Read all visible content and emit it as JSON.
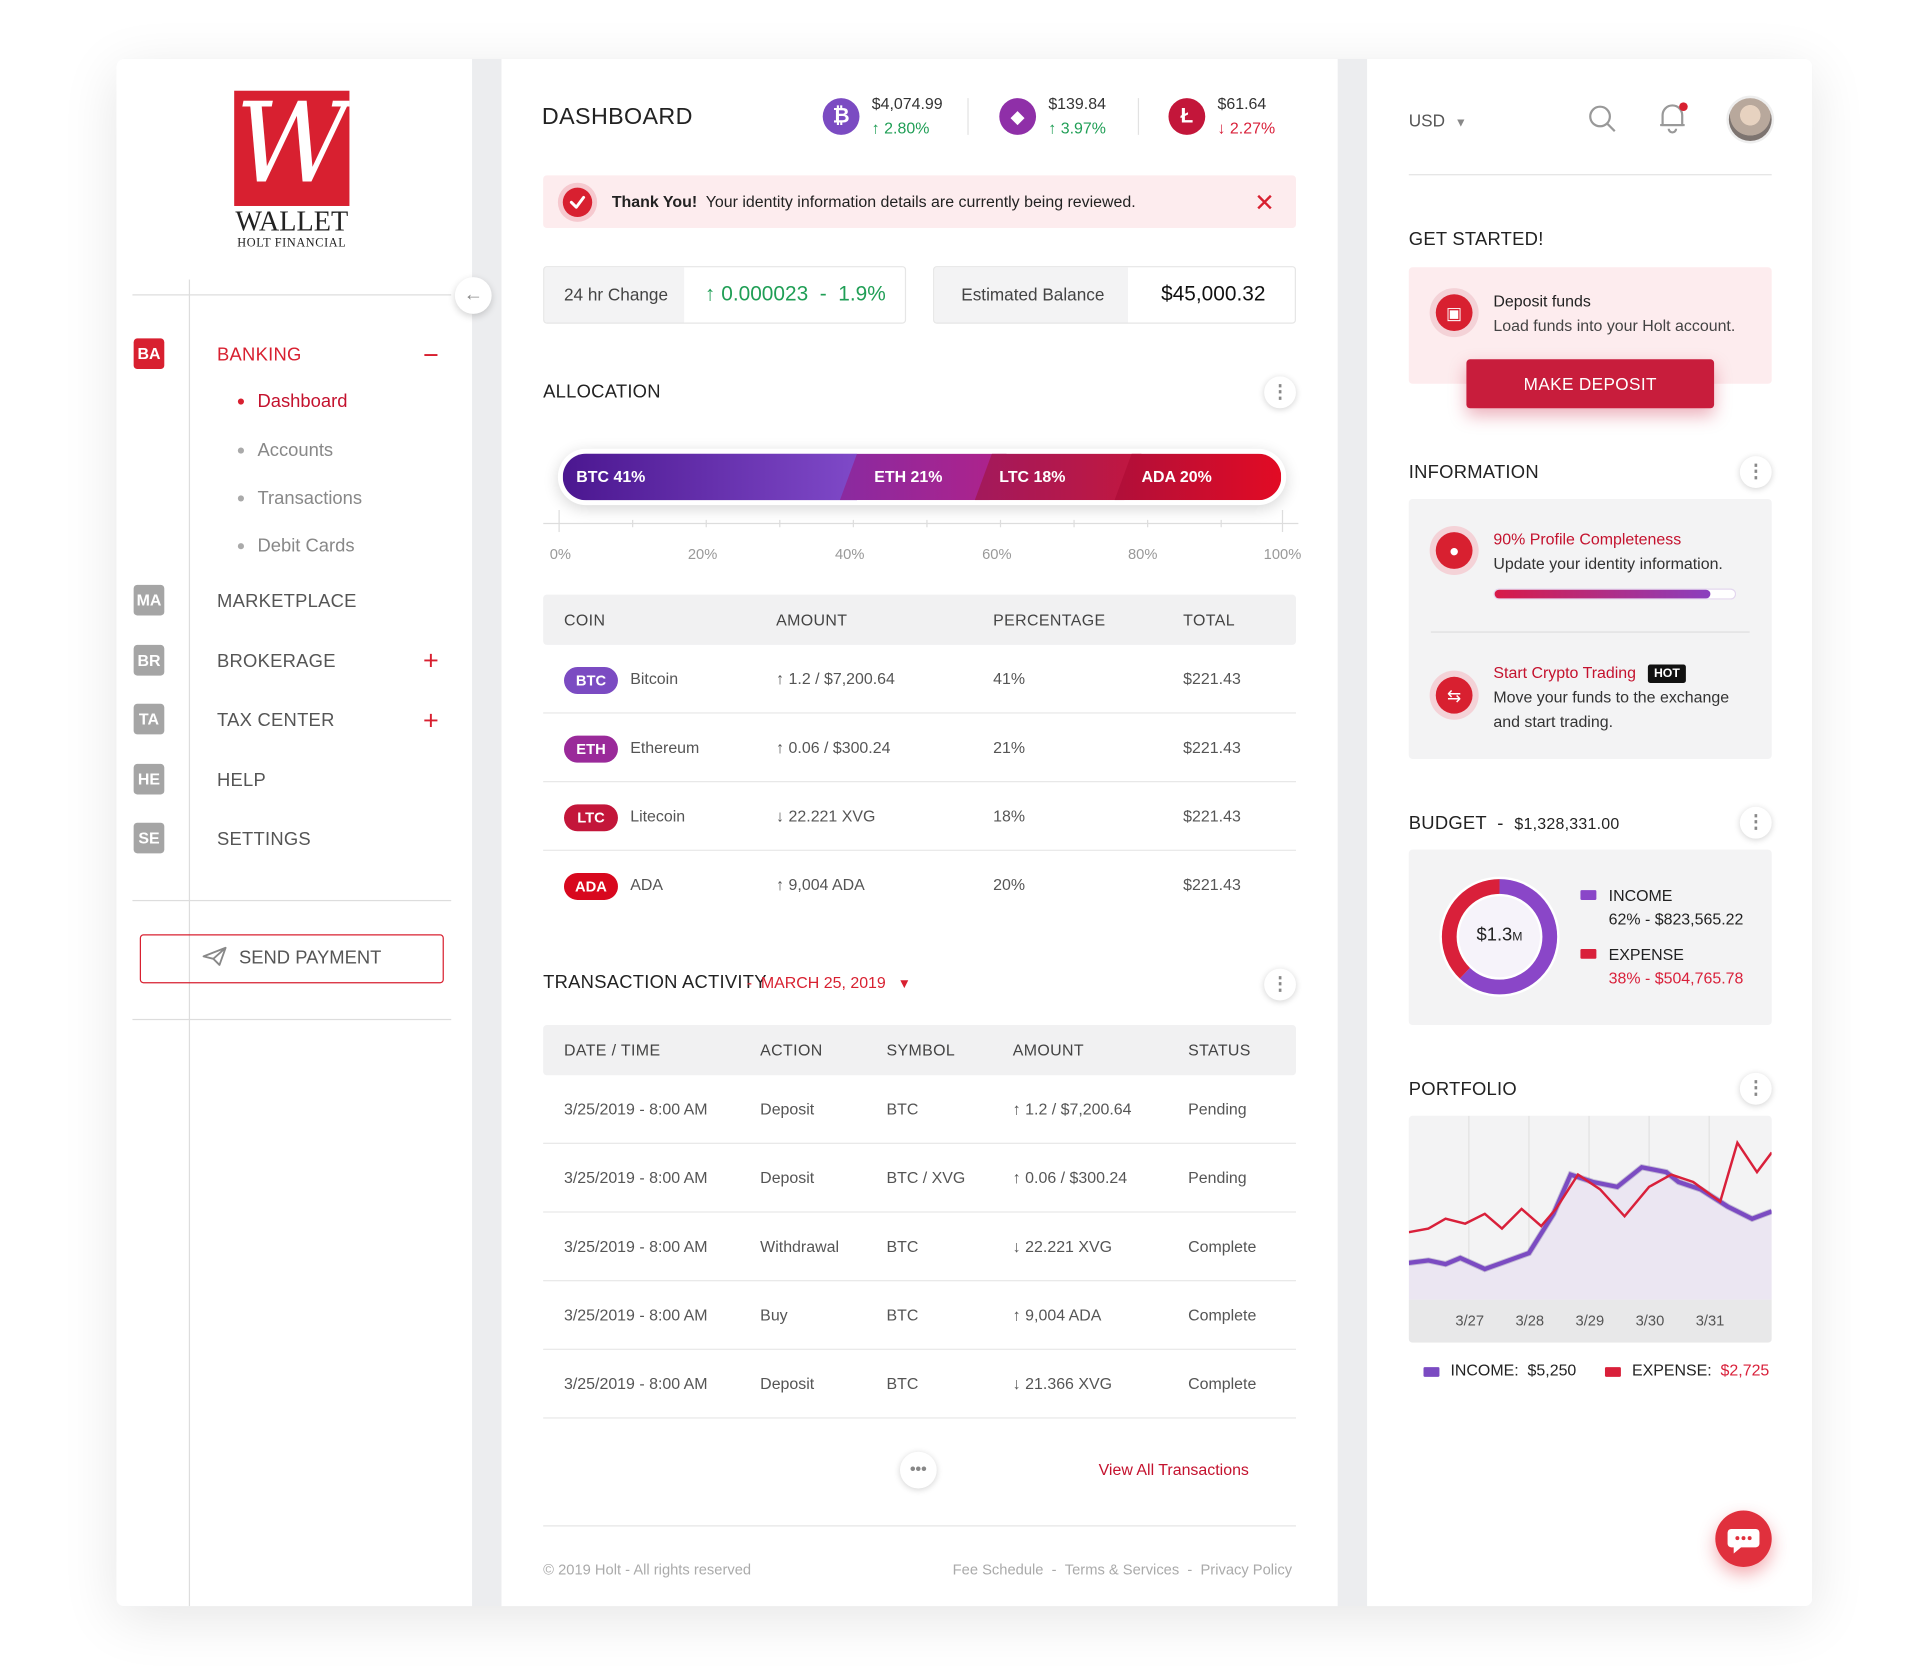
{
  "brand": {
    "logo_letter": "W",
    "name": "WALLET",
    "company": "HOLT FINANCIAL"
  },
  "sidebar": {
    "collapse_icon": "arrow-left-icon",
    "nav": [
      {
        "badge": "BA",
        "label": "BANKING",
        "active": true,
        "sign": "−"
      },
      {
        "badge": "MA",
        "label": "MARKETPLACE"
      },
      {
        "badge": "BR",
        "label": "BROKERAGE",
        "sign": "+"
      },
      {
        "badge": "TA",
        "label": "TAX CENTER",
        "sign": "+"
      },
      {
        "badge": "HE",
        "label": "HELP"
      },
      {
        "badge": "SE",
        "label": "SETTINGS"
      }
    ],
    "sub_items": [
      {
        "label": "Dashboard",
        "active": true
      },
      {
        "label": "Accounts"
      },
      {
        "label": "Transactions"
      },
      {
        "label": "Debit Cards"
      }
    ],
    "send_payment": "SEND PAYMENT"
  },
  "header": {
    "title": "DASHBOARD",
    "tickers": [
      {
        "symbol": "₿",
        "price": "$4,074.99",
        "change": "2.80%",
        "dir": "up",
        "color": "#7b4bc2",
        "icon": "bitcoin-icon"
      },
      {
        "symbol": "◆",
        "price": "$139.84",
        "change": "3.97%",
        "dir": "up",
        "color": "#8f2fa8",
        "icon": "ethereum-icon"
      },
      {
        "symbol": "Ł",
        "price": "$61.64",
        "change": "2.27%",
        "dir": "down",
        "color": "#c3163a",
        "icon": "litecoin-icon"
      }
    ]
  },
  "alert": {
    "strong": "Thank You!",
    "text": "Your identity information details are currently being reviewed."
  },
  "stats": {
    "change_label": "24 hr Change",
    "change_value": "0.000023",
    "change_pct": "1.9%",
    "balance_label": "Estimated Balance",
    "balance_value": "$45,000.32"
  },
  "allocation": {
    "title": "ALLOCATION",
    "segments": [
      {
        "label": "BTC 41%",
        "pct": 41
      },
      {
        "label": "ETH 21%",
        "pct": 21
      },
      {
        "label": "LTC 18%",
        "pct": 18
      },
      {
        "label": "ADA 20%",
        "pct": 20
      }
    ],
    "axis": [
      "0%",
      "20%",
      "40%",
      "60%",
      "80%",
      "100%"
    ]
  },
  "coins": {
    "headers": [
      "COIN",
      "AMOUNT",
      "PERCENTAGE",
      "TOTAL"
    ],
    "rows": [
      {
        "tag": "BTC",
        "name": "Bitcoin",
        "amount": "1.2 / $7,200.64",
        "dir": "up",
        "pct": "41%",
        "total": "$221.43",
        "color": "#7b4bc2"
      },
      {
        "tag": "ETH",
        "name": "Ethereum",
        "amount": "0.06 / $300.24",
        "dir": "up",
        "pct": "21%",
        "total": "$221.43",
        "color": "#9a2a9a"
      },
      {
        "tag": "LTC",
        "name": "Litecoin",
        "amount": "22.221 XVG",
        "dir": "down",
        "pct": "18%",
        "total": "$221.43",
        "color": "#c3163a"
      },
      {
        "tag": "ADA",
        "name": "ADA",
        "amount": "9,004 ADA",
        "dir": "up",
        "pct": "20%",
        "total": "$221.43",
        "color": "#d8081e"
      }
    ]
  },
  "transactions": {
    "title": "TRANSACTION ACTIVITY",
    "date": "MARCH 25, 2019",
    "headers": [
      "DATE / TIME",
      "ACTION",
      "SYMBOL",
      "AMOUNT",
      "STATUS"
    ],
    "rows": [
      {
        "datetime": "3/25/2019 - 8:00 AM",
        "action": "Deposit",
        "symbol": "BTC",
        "amount": "1.2 / $7,200.64",
        "dir": "up",
        "status": "Pending"
      },
      {
        "datetime": "3/25/2019 - 8:00 AM",
        "action": "Deposit",
        "symbol": "BTC / XVG",
        "amount": "0.06 / $300.24",
        "dir": "up",
        "status": "Pending"
      },
      {
        "datetime": "3/25/2019 - 8:00 AM",
        "action": "Withdrawal",
        "symbol": "BTC",
        "amount": "22.221 XVG",
        "dir": "down",
        "status": "Complete"
      },
      {
        "datetime": "3/25/2019 - 8:00 AM",
        "action": "Buy",
        "symbol": "BTC",
        "amount": "9,004 ADA",
        "dir": "up",
        "status": "Complete"
      },
      {
        "datetime": "3/25/2019 - 8:00 AM",
        "action": "Deposit",
        "symbol": "BTC",
        "amount": "21.366 XVG",
        "dir": "down",
        "status": "Complete"
      }
    ],
    "view_all": "View All Transactions"
  },
  "footer": {
    "copyright": "© 2019 Holt - All rights reserved",
    "links": [
      "Fee Schedule",
      "Terms & Services",
      "Privacy Policy"
    ]
  },
  "topbar": {
    "currency": "USD"
  },
  "get_started": {
    "title": "GET STARTED!",
    "heading": "Deposit funds",
    "text": "Load funds into your Holt account.",
    "button": "MAKE DEPOSIT"
  },
  "information": {
    "title": "INFORMATION",
    "profile_title": "90% Profile Completeness",
    "profile_text": "Update your identity information.",
    "profile_progress": 0.9,
    "trading_title": "Start Crypto Trading",
    "trading_badge": "HOT",
    "trading_text_1": "Move your funds to the exchange",
    "trading_text_2": "and start trading."
  },
  "budget": {
    "title": "BUDGET",
    "total": "$1,328,331.00",
    "center_value": "$1.3",
    "center_unit": "M",
    "income_label": "INCOME",
    "income_value": "62% - $823,565.22",
    "income_pct": 62,
    "expense_label": "EXPENSE",
    "expense_value": "38% - $504,765.78",
    "expense_pct": 38
  },
  "portfolio": {
    "title": "PORTFOLIO",
    "x_labels": [
      "3/27",
      "3/28",
      "3/29",
      "3/30",
      "3/31"
    ],
    "income_label": "INCOME:",
    "income_value": "$5,250",
    "expense_label": "EXPENSE:",
    "expense_value": "$2,725",
    "income_color": "#7b4bc2",
    "expense_color": "#d9203a"
  }
}
